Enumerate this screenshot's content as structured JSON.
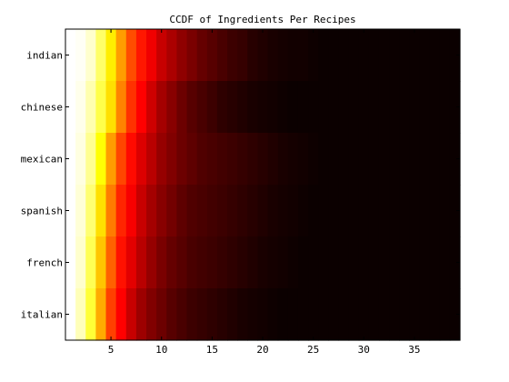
{
  "chart_data": {
    "type": "heatmap",
    "title": "CCDF of Ingredients Per Recipes",
    "xlabel": "",
    "ylabel": "",
    "xlim": [
      0.5,
      39.5
    ],
    "x_ticks": [
      5,
      10,
      15,
      20,
      25,
      30,
      35
    ],
    "x": [
      1,
      2,
      3,
      4,
      5,
      6,
      7,
      8,
      9,
      10,
      11,
      12,
      13,
      14,
      15,
      16,
      17,
      18,
      19,
      20,
      21,
      22,
      23,
      24,
      25,
      26,
      27,
      28,
      29,
      30,
      31,
      32,
      33,
      34,
      35,
      36,
      37,
      38,
      39
    ],
    "categories": [
      "indian",
      "chinese",
      "mexican",
      "spanish",
      "french",
      "italian"
    ],
    "colormap": "hot",
    "value_range": [
      0,
      1
    ],
    "series": [
      {
        "name": "indian",
        "values": [
          1.0,
          0.99,
          0.95,
          0.85,
          0.72,
          0.6,
          0.48,
          0.4,
          0.33,
          0.27,
          0.23,
          0.19,
          0.16,
          0.13,
          0.11,
          0.09,
          0.07,
          0.06,
          0.04,
          0.03,
          0.02,
          0.015,
          0.01,
          0.01,
          0.005,
          0,
          0,
          0,
          0,
          0,
          0,
          0,
          0,
          0,
          0,
          0,
          0,
          0,
          0
        ]
      },
      {
        "name": "chinese",
        "values": [
          1.0,
          0.98,
          0.92,
          0.82,
          0.7,
          0.56,
          0.44,
          0.35,
          0.28,
          0.22,
          0.18,
          0.14,
          0.11,
          0.09,
          0.07,
          0.05,
          0.04,
          0.03,
          0.02,
          0.015,
          0.01,
          0.005,
          0,
          0,
          0,
          0,
          0,
          0,
          0,
          0,
          0,
          0,
          0,
          0,
          0,
          0,
          0,
          0,
          0
        ]
      },
      {
        "name": "mexican",
        "values": [
          1.0,
          0.97,
          0.89,
          0.75,
          0.6,
          0.47,
          0.38,
          0.3,
          0.25,
          0.2,
          0.17,
          0.14,
          0.12,
          0.1,
          0.09,
          0.08,
          0.07,
          0.06,
          0.05,
          0.04,
          0.03,
          0.02,
          0.015,
          0.01,
          0.005,
          0,
          0,
          0,
          0,
          0,
          0,
          0,
          0,
          0,
          0,
          0,
          0,
          0,
          0
        ]
      },
      {
        "name": "spanish",
        "values": [
          1.0,
          0.96,
          0.86,
          0.7,
          0.55,
          0.42,
          0.34,
          0.27,
          0.22,
          0.18,
          0.15,
          0.12,
          0.1,
          0.09,
          0.08,
          0.07,
          0.06,
          0.05,
          0.04,
          0.03,
          0.02,
          0.015,
          0.01,
          0.005,
          0,
          0,
          0,
          0,
          0,
          0,
          0,
          0,
          0,
          0,
          0,
          0,
          0,
          0,
          0
        ]
      },
      {
        "name": "french",
        "values": [
          1.0,
          0.95,
          0.83,
          0.66,
          0.51,
          0.39,
          0.31,
          0.25,
          0.2,
          0.16,
          0.13,
          0.11,
          0.09,
          0.08,
          0.07,
          0.06,
          0.05,
          0.04,
          0.03,
          0.02,
          0.015,
          0.01,
          0.005,
          0,
          0,
          0,
          0,
          0,
          0,
          0,
          0,
          0,
          0,
          0,
          0,
          0,
          0,
          0,
          0
        ]
      },
      {
        "name": "italian",
        "values": [
          1.0,
          0.93,
          0.8,
          0.62,
          0.46,
          0.35,
          0.27,
          0.21,
          0.17,
          0.14,
          0.11,
          0.09,
          0.07,
          0.06,
          0.05,
          0.04,
          0.03,
          0.02,
          0.015,
          0.01,
          0.005,
          0,
          0,
          0,
          0,
          0,
          0,
          0,
          0,
          0,
          0,
          0,
          0,
          0,
          0,
          0,
          0,
          0,
          0
        ]
      }
    ]
  }
}
